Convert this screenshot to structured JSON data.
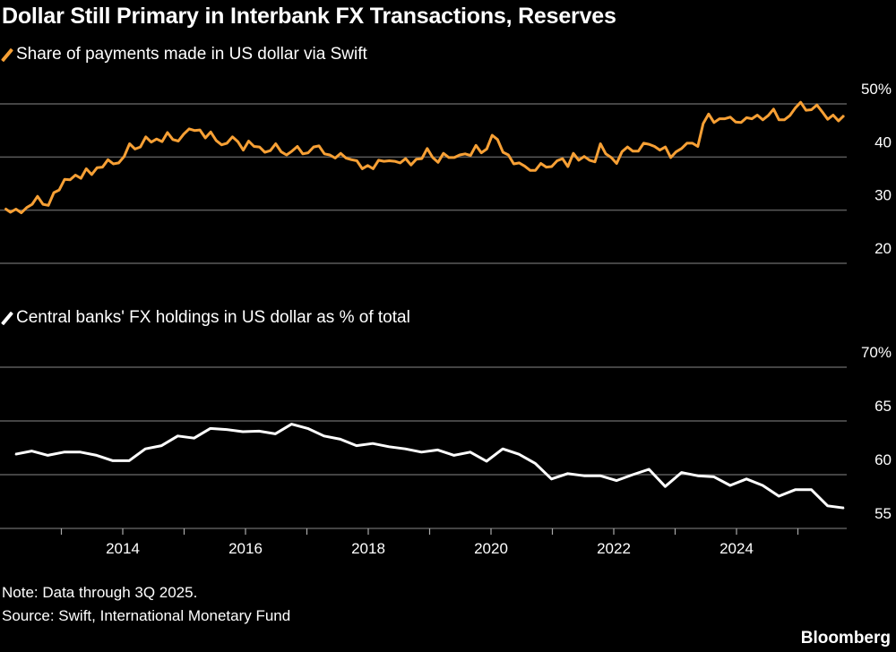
{
  "title": "Dollar Still Primary in Interbank FX Transactions, Reserves",
  "note": "Note: Data through 3Q 2025.",
  "source": "Source: Swift, International Monetary Fund",
  "brand": "Bloomberg",
  "chart_data": [
    {
      "type": "line",
      "series": [
        {
          "name": "Share of payments made in US dollar via Swift",
          "color": "#f7a035",
          "x_start": "2012-02",
          "x_end": "2025-10",
          "frequency": "monthly",
          "values": [
            30.3,
            29.6,
            30.2,
            29.5,
            30.5,
            31.1,
            32.6,
            31.1,
            30.9,
            33.3,
            33.8,
            35.8,
            35.7,
            36.6,
            36.0,
            37.8,
            36.7,
            38.0,
            38.1,
            39.5,
            38.7,
            38.9,
            40.1,
            42.5,
            41.5,
            41.9,
            43.8,
            42.8,
            43.4,
            42.9,
            44.6,
            43.3,
            43.0,
            44.3,
            45.3,
            45.0,
            45.1,
            43.6,
            44.7,
            43.1,
            42.3,
            42.6,
            43.8,
            42.9,
            41.3,
            43.0,
            42.0,
            41.9,
            40.9,
            41.2,
            42.5,
            41.0,
            40.4,
            41.1,
            42.0,
            40.6,
            40.8,
            41.9,
            42.1,
            40.6,
            40.4,
            39.8,
            40.7,
            39.8,
            39.5,
            39.3,
            37.8,
            38.4,
            37.8,
            39.4,
            39.2,
            39.3,
            39.2,
            38.9,
            39.7,
            38.5,
            39.6,
            39.7,
            41.6,
            39.9,
            39.0,
            40.7,
            39.9,
            39.9,
            40.4,
            40.6,
            40.3,
            42.2,
            40.8,
            41.5,
            44.1,
            43.3,
            40.9,
            40.4,
            38.7,
            38.9,
            38.3,
            37.5,
            37.5,
            38.8,
            38.1,
            38.2,
            39.3,
            39.7,
            38.2,
            40.7,
            39.4,
            40.1,
            39.4,
            39.1,
            42.5,
            40.6,
            39.9,
            38.8,
            41.0,
            41.9,
            41.1,
            41.1,
            42.6,
            42.4,
            42.0,
            41.3,
            41.9,
            39.9,
            41.0,
            41.6,
            42.6,
            42.6,
            42.0,
            46.3,
            48.1,
            46.5,
            47.2,
            47.2,
            47.5,
            46.6,
            46.5,
            47.4,
            47.2,
            47.9,
            47.0,
            47.8,
            49.0,
            47.0,
            47.0,
            47.8,
            49.2,
            50.3,
            48.8,
            48.9,
            49.8,
            48.5,
            47.1,
            47.9,
            46.8,
            47.8
          ]
        }
      ],
      "y_ticks": [
        "20",
        "30",
        "40",
        "50%"
      ],
      "y_tick_values": [
        20,
        30,
        40,
        50
      ],
      "ylim": [
        20,
        50
      ],
      "grid": true
    },
    {
      "type": "line",
      "series": [
        {
          "name": "Central banks' FX holdings in US dollar as % of total",
          "color": "#ffffff",
          "x_start": "2012Q1",
          "x_end": "2025Q3",
          "frequency": "quarterly",
          "values": [
            61.9,
            62.2,
            61.8,
            62.1,
            62.1,
            61.8,
            61.3,
            61.3,
            62.4,
            62.7,
            63.6,
            63.4,
            64.3,
            64.2,
            64.0,
            64.05,
            63.8,
            64.7,
            64.3,
            63.6,
            63.3,
            62.7,
            62.9,
            62.6,
            62.4,
            62.1,
            62.3,
            61.8,
            62.1,
            61.25,
            62.4,
            61.9,
            61.05,
            59.6,
            60.1,
            59.9,
            59.9,
            59.45,
            60.0,
            60.5,
            58.9,
            60.2,
            59.9,
            59.8,
            59.0,
            59.6,
            59.0,
            58.0,
            58.6,
            58.6,
            57.1,
            56.9
          ]
        }
      ],
      "y_ticks": [
        "55",
        "60",
        "65",
        "70%"
      ],
      "y_tick_values": [
        55,
        60,
        65,
        70
      ],
      "ylim": [
        55,
        70
      ],
      "x_ticks": [
        "2014",
        "2016",
        "2018",
        "2020",
        "2022",
        "2024"
      ],
      "x_tick_values": [
        2014,
        2016,
        2018,
        2020,
        2022,
        2024
      ],
      "grid": true
    }
  ]
}
